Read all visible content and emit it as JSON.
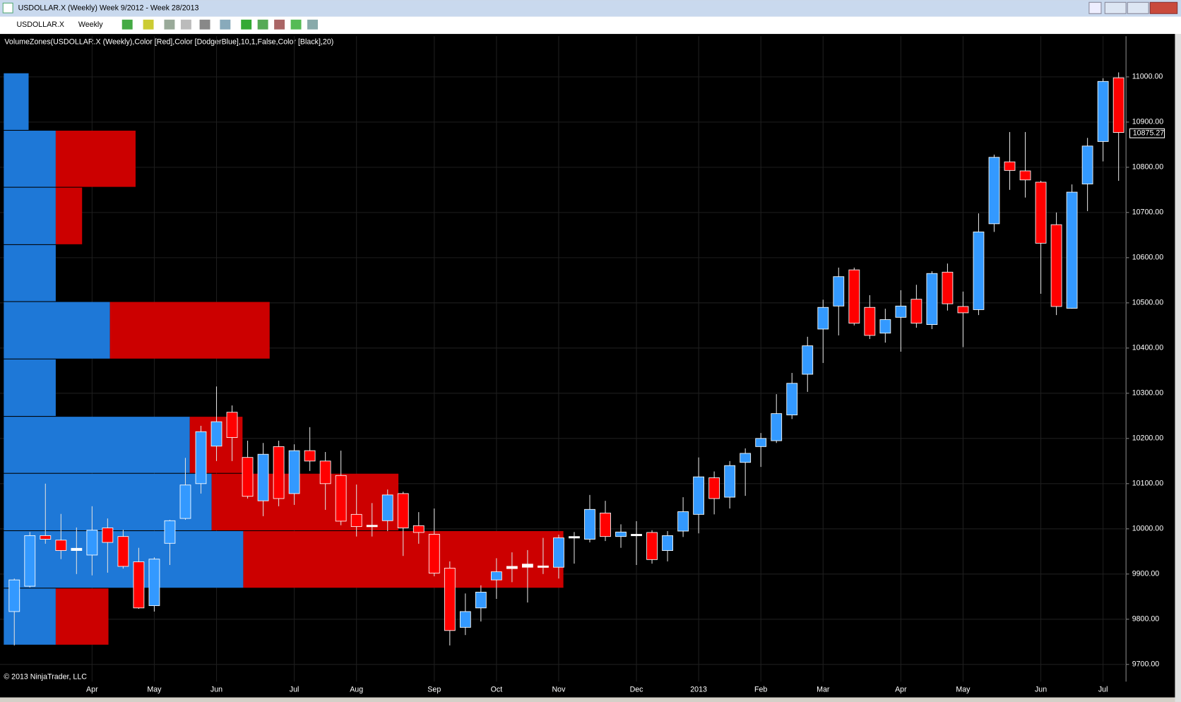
{
  "window": {
    "title": "USDOLLAR.X (Weekly)  Week 9/2012 - Week 28/2013",
    "instrument": "USDOLLAR.X",
    "period": "Weekly"
  },
  "chart_data": {
    "type": "candlestick",
    "indicator_label": "VolumeZones(USDOLLAR.X (Weekly),Color [Red],Color [DodgerBlue],10,1,False,Color [Black],20)",
    "copyright": "© 2013 NinjaTrader, LLC",
    "categories": [
      null,
      null,
      null,
      null,
      null,
      "Apr",
      null,
      null,
      null,
      "May",
      null,
      null,
      null,
      "Jun",
      null,
      null,
      null,
      null,
      "Jul",
      null,
      null,
      null,
      "Aug",
      null,
      null,
      null,
      null,
      "Sep",
      null,
      null,
      null,
      "Oct",
      null,
      null,
      null,
      "Nov",
      null,
      null,
      null,
      null,
      "Dec",
      null,
      null,
      null,
      "2013",
      null,
      null,
      null,
      "Feb",
      null,
      null,
      null,
      "Mar",
      null,
      null,
      null,
      null,
      "Apr",
      null,
      null,
      null,
      "May",
      null,
      null,
      null,
      null,
      "Jun",
      null,
      null,
      null,
      "Jul",
      null
    ],
    "open": [
      9817,
      9873,
      9985,
      9975,
      9957,
      9942,
      10002,
      9983,
      9927,
      9830,
      9968,
      10023,
      10100,
      10183,
      10258,
      10158,
      10062,
      10182,
      10078,
      10173,
      10150,
      10118,
      10032,
      10008,
      10018,
      10078,
      10007,
      9988,
      9913,
      9782,
      9825,
      9887,
      9912,
      9915,
      9918,
      9915,
      9983,
      9977,
      10035,
      9983,
      9988,
      9992,
      9952,
      9995,
      10032,
      10113,
      10070,
      10147,
      10182,
      10195,
      10252,
      10342,
      10442,
      10493,
      10573,
      10490,
      10433,
      10468,
      10508,
      10452,
      10568,
      10492,
      10485,
      10675,
      10812,
      10792,
      10767,
      10673,
      10488,
      10763,
      10857,
      10998
    ],
    "high": [
      9890,
      9993,
      10100,
      10033,
      10003,
      10050,
      10023,
      9998,
      9958,
      9937,
      10020,
      10157,
      10228,
      10315,
      10273,
      10195,
      10190,
      10195,
      10187,
      10225,
      10170,
      10173,
      10098,
      10057,
      10087,
      10082,
      10037,
      10045,
      9928,
      9857,
      9875,
      9935,
      9948,
      9953,
      9980,
      9987,
      9993,
      10075,
      10062,
      10010,
      10017,
      9997,
      9995,
      10070,
      10158,
      10127,
      10150,
      10178,
      10212,
      10298,
      10345,
      10425,
      10507,
      10578,
      10578,
      10517,
      10487,
      10528,
      10540,
      10570,
      10587,
      10525,
      10698,
      10828,
      10878,
      10878,
      10770,
      10700,
      10762,
      10865,
      10997,
      11010
    ],
    "low": [
      9742,
      9870,
      9967,
      9933,
      9900,
      9897,
      9903,
      9912,
      9823,
      9817,
      9920,
      10020,
      10078,
      10150,
      10150,
      10067,
      10028,
      10050,
      10053,
      10128,
      10042,
      10008,
      9983,
      9983,
      9995,
      9940,
      9967,
      9895,
      9742,
      9765,
      9795,
      9845,
      9882,
      9837,
      9900,
      9890,
      9923,
      9970,
      9973,
      9958,
      9920,
      9923,
      9928,
      9982,
      9990,
      10032,
      10045,
      10073,
      10137,
      10190,
      10243,
      10303,
      10367,
      10428,
      10450,
      10420,
      10412,
      10392,
      10445,
      10442,
      10483,
      10402,
      10473,
      10657,
      10750,
      10733,
      10520,
      10473,
      10487,
      10703,
      10813,
      10770
    ],
    "close": [
      9887,
      9985,
      9977,
      9952,
      9952,
      9997,
      9970,
      9917,
      9825,
      9933,
      10018,
      10097,
      10215,
      10237,
      10202,
      10072,
      10165,
      10067,
      10173,
      10150,
      10100,
      10017,
      10005,
      10005,
      10075,
      10002,
      9992,
      9902,
      9775,
      9817,
      9860,
      9905,
      9917,
      9922,
      9915,
      9980,
      9980,
      10043,
      9983,
      9993,
      9985,
      9932,
      9985,
      10038,
      10115,
      10067,
      10140,
      10167,
      10200,
      10255,
      10322,
      10405,
      10490,
      10558,
      10455,
      10428,
      10463,
      10493,
      10455,
      10565,
      10498,
      10478,
      10657,
      10822,
      10793,
      10772,
      10632,
      10492,
      10745,
      10847,
      10990,
      10877
    ],
    "up_color": "#3399ff",
    "down_color": "#ff0000",
    "last_price": 10875.27,
    "ylim": [
      9662,
      11090
    ],
    "yticks": [
      {
        "value": 11000,
        "label": "11000.00"
      },
      {
        "value": 10900,
        "label": "10900.00"
      },
      {
        "value": 10800,
        "label": "10800.00"
      },
      {
        "value": 10700,
        "label": "10700.00"
      },
      {
        "value": 10600,
        "label": "10600.00"
      },
      {
        "value": 10500,
        "label": "10500.00"
      },
      {
        "value": 10400,
        "label": "10400.00"
      },
      {
        "value": 10300,
        "label": "10300.00"
      },
      {
        "value": 10200,
        "label": "10200.00"
      },
      {
        "value": 10100,
        "label": "10100.00"
      },
      {
        "value": 10000,
        "label": "10000.00"
      },
      {
        "value": 9900,
        "label": "9900.00"
      },
      {
        "value": 9800,
        "label": "9800.00"
      },
      {
        "value": 9700,
        "label": "9700.00"
      }
    ],
    "grid": true,
    "volume_zones": {
      "bounds": [
        11008,
        10881,
        10755,
        10628,
        10502,
        10375,
        10248,
        10122,
        9995,
        9868,
        9742
      ],
      "up_volume": [
        33,
        69,
        69,
        69,
        141,
        69,
        247,
        276,
        318,
        69
      ],
      "down_volume": [
        0,
        106,
        35,
        0,
        212,
        0,
        70,
        248,
        425,
        70
      ],
      "up_color": "#1e78d7",
      "down_color": "#cc0000"
    }
  }
}
